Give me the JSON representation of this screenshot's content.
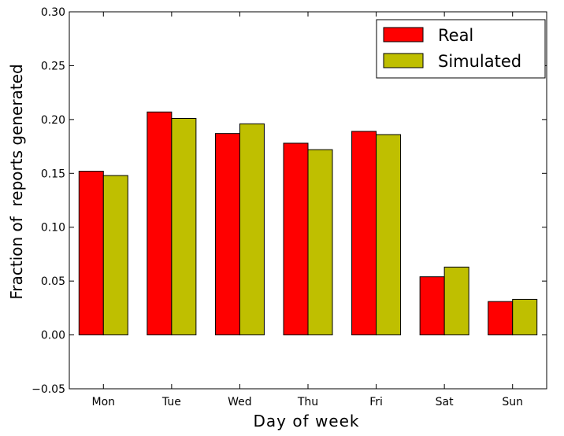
{
  "chart_data": {
    "type": "bar",
    "title": "",
    "xlabel": "Day of week",
    "ylabel": "Fraction of  reports generated",
    "categories": [
      "Mon",
      "Tue",
      "Wed",
      "Thu",
      "Fri",
      "Sat",
      "Sun"
    ],
    "series": [
      {
        "name": "Real",
        "color": "#ff0000",
        "values": [
          0.152,
          0.207,
          0.187,
          0.178,
          0.189,
          0.054,
          0.031
        ]
      },
      {
        "name": "Simulated",
        "color": "#bfbf00",
        "values": [
          0.148,
          0.201,
          0.196,
          0.172,
          0.186,
          0.063,
          0.033
        ]
      }
    ],
    "ylim": [
      -0.05,
      0.3
    ],
    "yticks": [
      "−0.05",
      "0.00",
      "0.05",
      "0.10",
      "0.15",
      "0.20",
      "0.25",
      "0.30"
    ],
    "ytick_values": [
      -0.05,
      0.0,
      0.05,
      0.1,
      0.15,
      0.2,
      0.25,
      0.3
    ],
    "grid": false,
    "legend_position": "top-right"
  }
}
